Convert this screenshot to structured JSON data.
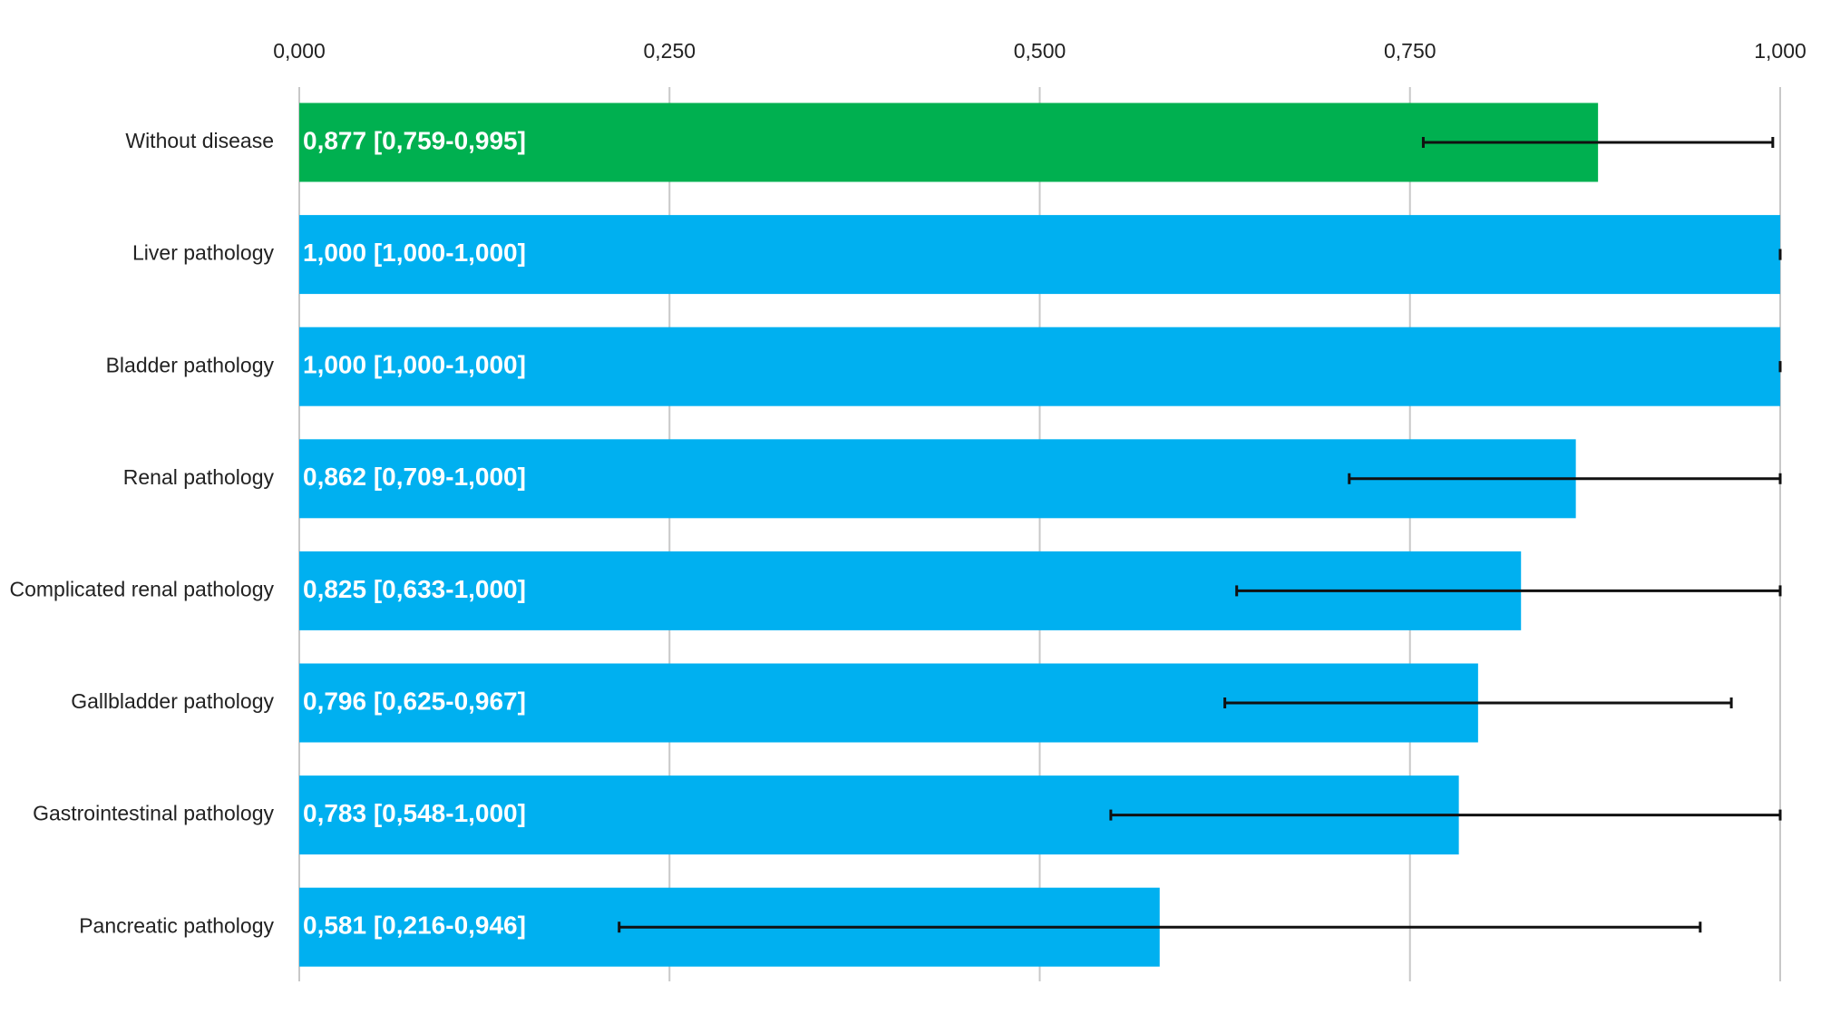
{
  "chart_data": {
    "type": "hbar_ci",
    "categories": [
      "Without disease",
      "Liver pathology",
      "Bladder pathology",
      "Renal pathology",
      "Complicated renal pathology",
      "Gallbladder pathology",
      "Gastrointestinal pathology",
      "Pancreatic pathology"
    ],
    "values": [
      0.877,
      1.0,
      1.0,
      0.862,
      0.825,
      0.796,
      0.783,
      0.581
    ],
    "ci_low": [
      0.759,
      1.0,
      1.0,
      0.709,
      0.633,
      0.625,
      0.548,
      0.216
    ],
    "ci_high": [
      0.995,
      1.0,
      1.0,
      1.0,
      1.0,
      0.967,
      1.0,
      0.946
    ],
    "value_labels": [
      "0,877 [0,759-0,995]",
      "1,000 [1,000-1,000]",
      "1,000 [1,000-1,000]",
      "0,862 [0,709-1,000]",
      "0,825 [0,633-1,000]",
      "0,796 [0,625-0,967]",
      "0,783 [0,548-1,000]",
      "0,581 [0,216-0,946]"
    ],
    "colors": [
      "#00b050",
      "#00b0f0",
      "#00b0f0",
      "#00b0f0",
      "#00b0f0",
      "#00b0f0",
      "#00b0f0",
      "#00b0f0"
    ],
    "xlim": [
      0,
      1
    ],
    "xticks": [
      {
        "value": 0,
        "label": "0,000"
      },
      {
        "value": 0.25,
        "label": "0,250"
      },
      {
        "value": 0.5,
        "label": "0,500"
      },
      {
        "value": 0.75,
        "label": "0,750"
      },
      {
        "value": 1,
        "label": "1,000"
      }
    ],
    "grid": true
  }
}
